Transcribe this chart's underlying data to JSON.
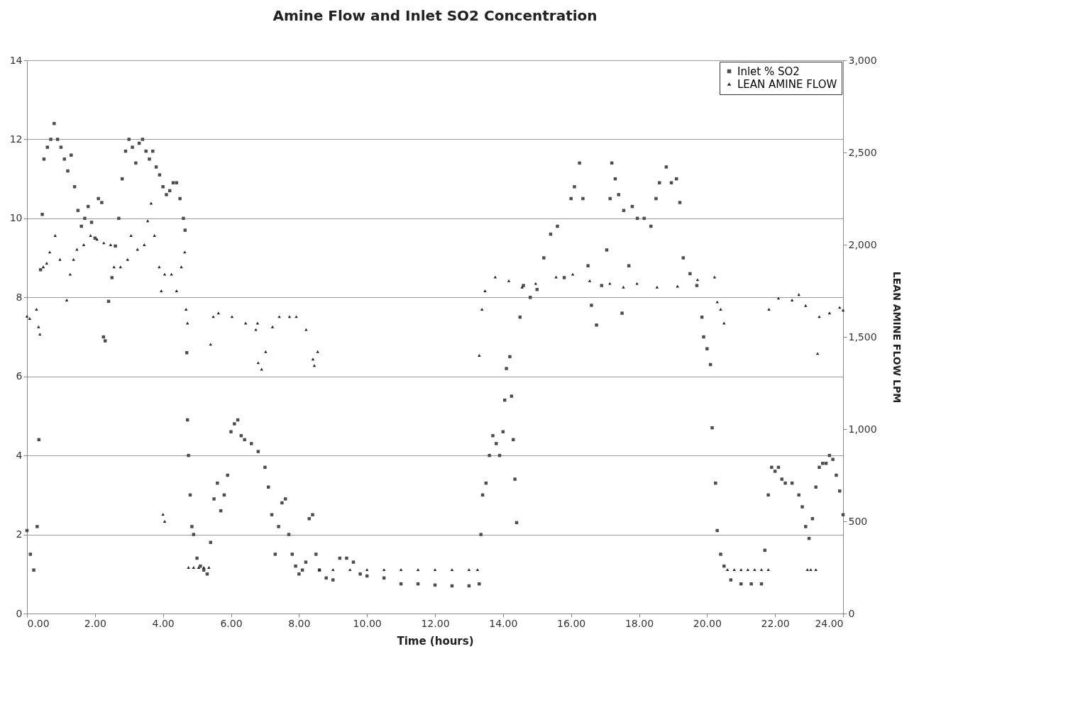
{
  "chart_data": {
    "type": "scatter",
    "title": "Amine Flow and Inlet SO2 Concentration",
    "xlabel": "Time (hours)",
    "y2label": "LEAN AMINE FLOW LPM",
    "xlim": [
      0,
      24
    ],
    "xticks": [
      {
        "value": 0,
        "label": "0.00"
      },
      {
        "value": 2,
        "label": "2.00"
      },
      {
        "value": 4,
        "label": "4.00"
      },
      {
        "value": 6,
        "label": "6.00"
      },
      {
        "value": 8,
        "label": "8.00"
      },
      {
        "value": 10,
        "label": "10.00"
      },
      {
        "value": 12,
        "label": "12.00"
      },
      {
        "value": 14,
        "label": "14.00"
      },
      {
        "value": 16,
        "label": "16.00"
      },
      {
        "value": 18,
        "label": "18.00"
      },
      {
        "value": 20,
        "label": "20.00"
      },
      {
        "value": 22,
        "label": "22.00"
      },
      {
        "value": 24,
        "label": "24.00"
      }
    ],
    "ylim": [
      0,
      14
    ],
    "yticks": [
      0,
      2,
      4,
      6,
      8,
      10,
      12,
      14
    ],
    "y2lim": [
      0,
      3000
    ],
    "y2ticks": [
      0,
      500,
      {
        "value": 1000,
        "label": "1,000"
      },
      {
        "value": 1500,
        "label": "1,500"
      },
      {
        "value": 2000,
        "label": "2,000"
      },
      {
        "value": 2500,
        "label": "2,500"
      },
      {
        "value": 3000,
        "label": "3,000"
      }
    ],
    "grid": "y",
    "legend": "top right",
    "series": [
      {
        "name": "Inlet % SO2",
        "color": "#4d4d4d",
        "marker": "square",
        "x": [
          0,
          0.1,
          0.2,
          0.3,
          0.35,
          0.4,
          0.45,
          0.5,
          0.6,
          0.7,
          0.8,
          0.9,
          1,
          1.1,
          1.2,
          1.3,
          1.4,
          1.5,
          1.6,
          1.7,
          1.8,
          1.9,
          2,
          2.1,
          2.2,
          2.25,
          2.3,
          2.4,
          2.5,
          2.6,
          2.7,
          2.8,
          2.9,
          3,
          3.1,
          3.2,
          3.3,
          3.4,
          3.5,
          3.6,
          3.7,
          3.8,
          3.9,
          4,
          4.1,
          4.2,
          4.3,
          4.4,
          4.5,
          4.6,
          4.65,
          4.7,
          4.72,
          4.75,
          4.8,
          4.85,
          4.9,
          5,
          5.1,
          5.2,
          5.3,
          5.4,
          5.5,
          5.6,
          5.7,
          5.8,
          5.9,
          6,
          6.1,
          6.2,
          6.3,
          6.4,
          6.6,
          6.8,
          7,
          7.1,
          7.2,
          7.3,
          7.4,
          7.5,
          7.6,
          7.7,
          7.8,
          7.9,
          8,
          8.1,
          8.2,
          8.3,
          8.4,
          8.5,
          8.6,
          8.8,
          9,
          9.2,
          9.4,
          9.6,
          9.8,
          10,
          10.5,
          11,
          11.5,
          12,
          12.5,
          13,
          13.3,
          13.35,
          13.4,
          13.5,
          13.6,
          13.7,
          13.8,
          13.9,
          14,
          14.05,
          14.1,
          14.2,
          14.25,
          14.3,
          14.35,
          14.4,
          14.5,
          14.6,
          14.8,
          15,
          15.2,
          15.4,
          15.6,
          15.8,
          16,
          16.1,
          16.25,
          16.35,
          16.5,
          16.6,
          16.75,
          16.9,
          17.05,
          17.15,
          17.2,
          17.3,
          17.4,
          17.5,
          17.55,
          17.7,
          17.8,
          17.95,
          18.15,
          18.35,
          18.5,
          18.6,
          18.8,
          18.95,
          19.1,
          19.2,
          19.3,
          19.5,
          19.7,
          19.85,
          19.9,
          20,
          20.1,
          20.15,
          20.25,
          20.3,
          20.4,
          20.5,
          20.7,
          21,
          21.3,
          21.6,
          21.7,
          21.8,
          21.9,
          22,
          22.1,
          22.2,
          22.3,
          22.5,
          22.7,
          22.8,
          22.9,
          23,
          23.1,
          23.2,
          23.3,
          23.4,
          23.5,
          23.6,
          23.7,
          23.8,
          23.9,
          24
        ],
        "values": [
          2.1,
          1.5,
          1.1,
          2.2,
          4.4,
          8.7,
          10.1,
          11.5,
          11.8,
          12,
          12.4,
          12,
          11.8,
          11.5,
          11.2,
          11.6,
          10.8,
          10.2,
          9.8,
          10,
          10.3,
          9.9,
          9.5,
          10.5,
          10.4,
          7,
          6.9,
          7.9,
          8.5,
          9.3,
          10,
          11,
          11.7,
          12,
          11.8,
          11.4,
          11.9,
          12,
          11.7,
          11.5,
          11.7,
          11.3,
          11.1,
          10.8,
          10.6,
          10.7,
          10.9,
          10.9,
          10.5,
          10,
          9.7,
          6.6,
          4.9,
          4,
          3,
          2.2,
          2,
          1.4,
          1.2,
          1.1,
          1,
          1.8,
          2.9,
          3.3,
          2.6,
          3,
          3.5,
          4.6,
          4.8,
          4.9,
          4.5,
          4.4,
          4.3,
          4.1,
          3.7,
          3.2,
          2.5,
          1.5,
          2.2,
          2.8,
          2.9,
          2,
          1.5,
          1.2,
          1,
          1.1,
          1.3,
          2.4,
          2.5,
          1.5,
          1.1,
          0.9,
          0.85,
          1.4,
          1.4,
          1.3,
          1,
          0.95,
          0.9,
          0.75,
          0.75,
          0.72,
          0.7,
          0.7,
          0.75,
          2,
          3,
          3.3,
          4,
          4.5,
          4.3,
          4,
          4.6,
          5.4,
          6.2,
          6.5,
          5.5,
          4.4,
          3.4,
          2.3,
          7.5,
          8.3,
          8,
          8.2,
          9,
          9.6,
          9.8,
          8.5,
          10.5,
          10.8,
          11.4,
          10.5,
          8.8,
          7.8,
          7.3,
          8.3,
          9.2,
          10.5,
          11.4,
          11,
          10.6,
          7.6,
          10.2,
          8.8,
          10.3,
          10,
          10,
          9.8,
          10.5,
          10.9,
          11.3,
          10.9,
          11,
          10.4,
          9,
          8.6,
          8.3,
          7.5,
          7,
          6.7,
          6.3,
          4.7,
          3.3,
          2.1,
          1.5,
          1.2,
          0.85,
          0.75,
          0.75,
          0.75,
          1.6,
          3,
          3.7,
          3.6,
          3.7,
          3.4,
          3.3,
          3.3,
          3,
          2.7,
          2.2,
          1.9,
          2.4,
          3.2,
          3.7,
          3.8,
          3.8,
          4,
          3.9,
          3.5,
          3.1,
          2.5
        ]
      },
      {
        "name": "LEAN AMINE FLOW",
        "color": "#262626",
        "marker": "triangle",
        "axis": "y2",
        "x": [
          0,
          0.08,
          0.28,
          0.34,
          0.38,
          0.48,
          0.58,
          0.67,
          0.83,
          0.97,
          1.17,
          1.27,
          1.37,
          1.47,
          1.67,
          1.87,
          2.06,
          2.26,
          2.46,
          2.56,
          2.75,
          2.96,
          3.06,
          3.25,
          3.45,
          3.55,
          3.65,
          3.75,
          3.89,
          3.95,
          4,
          4.05,
          4.05,
          4.25,
          4.4,
          4.54,
          4.64,
          4.68,
          4.72,
          4.75,
          4.9,
          5.05,
          5.2,
          5.35,
          5.4,
          5.48,
          5.63,
          6.03,
          6.43,
          6.73,
          6.78,
          6.8,
          6.9,
          7.02,
          7.22,
          7.42,
          7.72,
          7.92,
          8.21,
          8.41,
          8.45,
          8.55,
          8.6,
          9,
          9.5,
          10,
          10.5,
          11,
          11.5,
          12,
          12.5,
          13,
          13.25,
          13.3,
          13.38,
          13.47,
          13.77,
          14.17,
          14.56,
          14.96,
          15.56,
          16.05,
          16.55,
          17.14,
          17.54,
          17.94,
          18.53,
          19.13,
          19.72,
          20.22,
          20.3,
          20.4,
          20.5,
          20.6,
          20.8,
          21,
          21.2,
          21.4,
          21.6,
          21.8,
          21.82,
          22.1,
          22.5,
          22.7,
          22.9,
          22.95,
          23.05,
          23.2,
          23.25,
          23.3,
          23.6,
          23.9,
          24
        ],
        "values": [
          1612,
          1600,
          1650,
          1555,
          1515,
          1880,
          1900,
          1960,
          2050,
          1920,
          1700,
          1840,
          1920,
          1975,
          2000,
          2050,
          2030,
          2010,
          2000,
          1880,
          1880,
          1920,
          2050,
          1975,
          2000,
          2130,
          2225,
          2050,
          1880,
          1750,
          538,
          500,
          1840,
          1840,
          1750,
          1880,
          1960,
          1650,
          1575,
          250,
          250,
          250,
          250,
          250,
          1460,
          1610,
          1630,
          1610,
          1575,
          1540,
          1575,
          1360,
          1325,
          1420,
          1555,
          1610,
          1610,
          1610,
          1540,
          1380,
          1345,
          1420,
          238,
          238,
          238,
          238,
          238,
          238,
          238,
          238,
          238,
          238,
          238,
          1400,
          1650,
          1750,
          1825,
          1805,
          1770,
          1790,
          1825,
          1840,
          1805,
          1790,
          1770,
          1790,
          1770,
          1775,
          1810,
          1825,
          1690,
          1650,
          1575,
          238,
          238,
          238,
          238,
          238,
          238,
          238,
          1650,
          1710,
          1700,
          1730,
          1670,
          238,
          238,
          238,
          1410,
          1610,
          1630,
          1660,
          1645
        ]
      }
    ]
  }
}
